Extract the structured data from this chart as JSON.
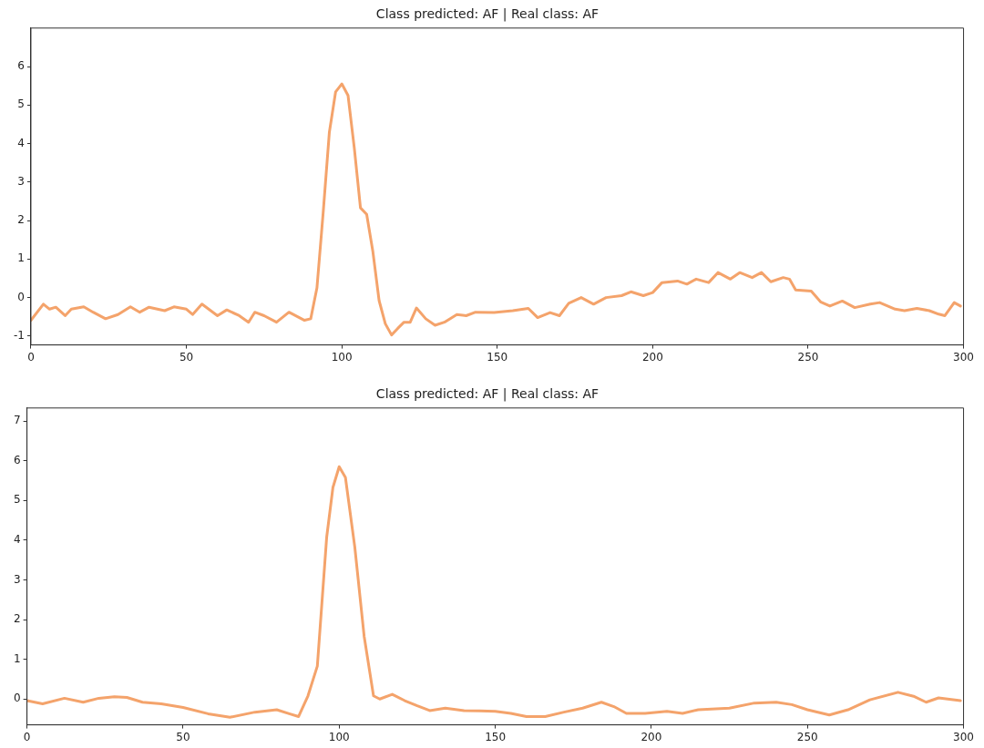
{
  "chart_data": [
    {
      "type": "line",
      "title": "Class predicted: AF | Real class: AF",
      "xlim": [
        0,
        300
      ],
      "xticks": [
        0,
        50,
        100,
        150,
        200,
        250,
        300
      ],
      "ylim": [
        -1.23,
        7.0
      ],
      "yticks": [
        -1,
        0,
        1,
        2,
        3,
        4,
        5,
        6
      ],
      "grid": false,
      "legend": false,
      "marker": "none",
      "series": [
        {
          "color": "#f4a36b",
          "x": [
            0,
            4,
            6,
            8,
            11,
            13,
            17,
            20,
            24,
            28,
            32,
            35,
            38,
            43,
            46,
            50,
            52,
            55,
            60,
            63,
            67,
            70,
            72,
            75,
            79,
            83,
            88,
            90,
            92,
            94,
            96,
            98,
            100,
            102,
            104,
            106,
            108,
            110,
            112,
            114,
            116,
            118,
            120,
            122,
            124,
            127,
            130,
            133,
            137,
            140,
            143,
            149,
            155,
            160,
            163,
            167,
            170,
            173,
            177,
            181,
            185,
            190,
            193,
            197,
            200,
            203,
            208,
            211,
            214,
            218,
            221,
            225,
            228,
            232,
            235,
            238,
            242,
            244,
            246,
            251,
            254,
            257,
            261,
            265,
            270,
            273,
            278,
            281,
            285,
            289,
            292,
            294,
            297,
            299
          ],
          "values": [
            -0.59,
            -0.17,
            -0.3,
            -0.25,
            -0.47,
            -0.3,
            -0.24,
            -0.38,
            -0.55,
            -0.44,
            -0.24,
            -0.38,
            -0.25,
            -0.34,
            -0.24,
            -0.3,
            -0.44,
            -0.17,
            -0.47,
            -0.32,
            -0.47,
            -0.64,
            -0.38,
            -0.47,
            -0.64,
            -0.38,
            -0.59,
            -0.55,
            0.25,
            2.2,
            4.3,
            5.34,
            5.55,
            5.25,
            3.9,
            2.33,
            2.16,
            1.19,
            -0.08,
            -0.68,
            -0.97,
            -0.8,
            -0.64,
            -0.64,
            -0.27,
            -0.55,
            -0.72,
            -0.64,
            -0.44,
            -0.47,
            -0.38,
            -0.39,
            -0.34,
            -0.28,
            -0.52,
            -0.39,
            -0.47,
            -0.15,
            0.0,
            -0.17,
            0.0,
            0.05,
            0.15,
            0.05,
            0.13,
            0.39,
            0.43,
            0.35,
            0.48,
            0.39,
            0.65,
            0.48,
            0.65,
            0.52,
            0.65,
            0.41,
            0.52,
            0.48,
            0.2,
            0.17,
            -0.11,
            -0.22,
            -0.09,
            -0.26,
            -0.17,
            -0.13,
            -0.3,
            -0.34,
            -0.28,
            -0.34,
            -0.43,
            -0.47,
            -0.13,
            -0.22
          ]
        }
      ]
    },
    {
      "type": "line",
      "title": "Class predicted: AF | Real class: AF",
      "xlim": [
        0,
        300
      ],
      "xticks": [
        0,
        50,
        100,
        150,
        200,
        250,
        300
      ],
      "ylim": [
        -0.65,
        7.33
      ],
      "yticks": [
        0,
        1,
        2,
        3,
        4,
        5,
        6,
        7
      ],
      "grid": false,
      "legend": false,
      "marker": "none",
      "series": [
        {
          "color": "#f4a36b",
          "x": [
            0,
            5,
            12,
            18,
            23,
            28,
            32,
            37,
            43,
            50,
            58,
            65,
            73,
            80,
            84,
            87,
            90,
            93,
            96,
            98,
            100,
            102,
            105,
            108,
            111,
            113,
            117,
            121,
            125,
            129,
            134,
            140,
            145,
            150,
            155,
            160,
            166,
            172,
            178,
            184,
            188,
            192,
            198,
            205,
            210,
            215,
            225,
            233,
            240,
            245,
            250,
            257,
            263,
            270,
            279,
            284,
            288,
            292,
            299
          ],
          "values": [
            -0.04,
            -0.12,
            0.02,
            -0.08,
            0.02,
            0.06,
            0.04,
            -0.08,
            -0.12,
            -0.21,
            -0.37,
            -0.46,
            -0.33,
            -0.27,
            -0.37,
            -0.44,
            0.08,
            0.83,
            4.08,
            5.33,
            5.85,
            5.58,
            3.83,
            1.58,
            0.08,
            0.0,
            0.12,
            -0.04,
            -0.17,
            -0.29,
            -0.23,
            -0.29,
            -0.3,
            -0.31,
            -0.36,
            -0.44,
            -0.44,
            -0.33,
            -0.23,
            -0.08,
            -0.19,
            -0.36,
            -0.36,
            -0.31,
            -0.36,
            -0.27,
            -0.23,
            -0.1,
            -0.08,
            -0.14,
            -0.27,
            -0.4,
            -0.27,
            -0.02,
            0.17,
            0.07,
            -0.08,
            0.03,
            -0.04
          ]
        }
      ]
    }
  ]
}
